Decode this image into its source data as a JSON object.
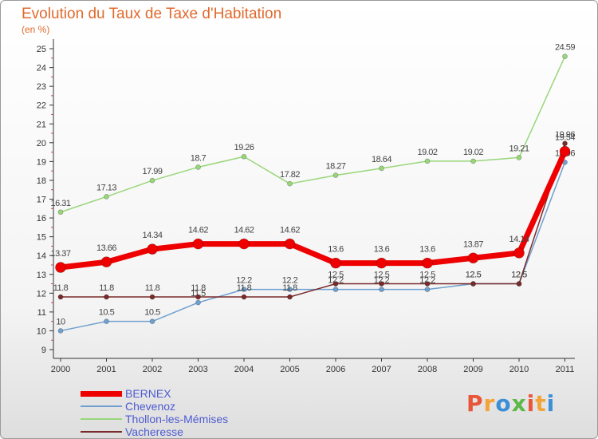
{
  "header": {
    "title": "Evolution du Taux de Taxe d'Habitation",
    "subtitle": "(en %)"
  },
  "brand": {
    "letters": [
      "P",
      "r",
      "o",
      "x",
      "i",
      "t",
      "i"
    ],
    "colors": [
      "#e8563a",
      "#f2a33a",
      "#3a8fd6",
      "#5cb848",
      "#e8563a",
      "#f2a33a",
      "#3a8fd6"
    ]
  },
  "chart_data": {
    "type": "line",
    "x": [
      "2000",
      "2001",
      "2002",
      "2003",
      "2004",
      "2005",
      "2006",
      "2007",
      "2008",
      "2009",
      "2010",
      "2011"
    ],
    "ylim": [
      9,
      25
    ],
    "yticks": [
      "9",
      "10",
      "11",
      "12",
      "13",
      "14",
      "15",
      "16",
      "17",
      "18",
      "19",
      "20",
      "21",
      "22",
      "23",
      "24",
      "25"
    ],
    "grid": false,
    "legend": "bottom-left",
    "series": [
      {
        "name": "Thollon-les-Mémises",
        "color": "#99d67a",
        "values": [
          16.31,
          17.13,
          17.99,
          18.7,
          19.26,
          17.82,
          18.27,
          18.64,
          19.02,
          19.02,
          19.21,
          24.59
        ],
        "labels": [
          "16.31",
          "17.13",
          "17.99",
          "18.7",
          "19.26",
          "17.82",
          "18.27",
          "18.64",
          "19.02",
          "19.02",
          "19.21",
          "24.59"
        ]
      },
      {
        "name": "Chevenoz",
        "color": "#6fa0cf",
        "values": [
          10,
          10.5,
          10.5,
          11.5,
          12.2,
          12.2,
          12.2,
          12.2,
          12.2,
          12.5,
          12.5,
          18.96
        ],
        "labels": [
          "10",
          "10.5",
          "10.5",
          "11.5",
          "12.2",
          "12.2",
          "12.2",
          "12.2",
          "12.2",
          "12.5",
          "12.5",
          "18.96"
        ]
      },
      {
        "name": "Vacheresse",
        "color": "#7a2a2a",
        "values": [
          11.8,
          11.8,
          11.8,
          11.8,
          11.8,
          11.8,
          12.5,
          12.5,
          12.5,
          12.5,
          12.5,
          19.96
        ],
        "labels": [
          "11.8",
          "11.8",
          "11.8",
          "11.8",
          "11.8",
          "11.8",
          "12.5",
          "12.5",
          "12.5",
          "12.5",
          "12.5",
          "19.96"
        ]
      },
      {
        "name": "BERNEX",
        "color": "#ee0000",
        "values": [
          13.37,
          13.66,
          14.34,
          14.62,
          14.62,
          14.62,
          13.6,
          13.6,
          13.6,
          13.87,
          14.14,
          19.54
        ],
        "labels": [
          "13.37",
          "13.66",
          "14.34",
          "14.62",
          "14.62",
          "14.62",
          "13.6",
          "13.6",
          "13.6",
          "13.87",
          "14.14",
          "19.54"
        ]
      }
    ]
  }
}
